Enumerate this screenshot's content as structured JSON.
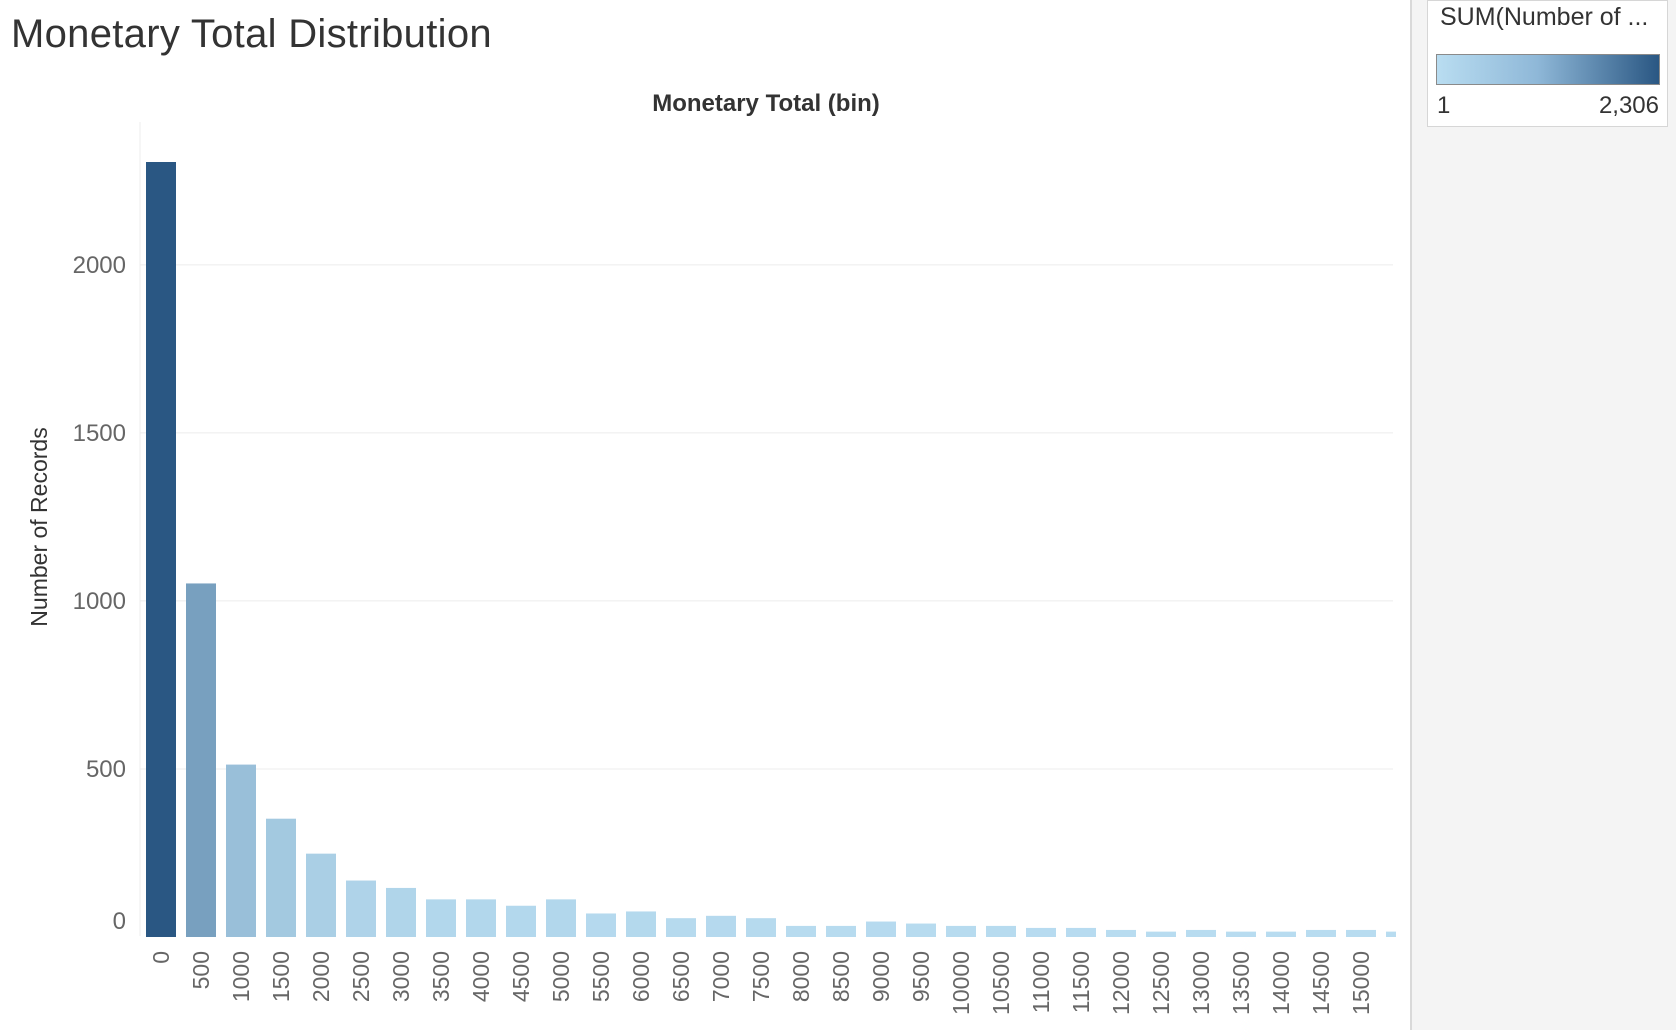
{
  "page": {
    "title": "Monetary Total Distribution"
  },
  "legend": {
    "title": "SUM(Number of ...",
    "min_label": "1",
    "max_label": "2,306",
    "color_low": "#b9ddf1",
    "color_high": "#2a5783"
  },
  "chart_data": {
    "type": "bar",
    "title": "Monetary Total (bin)",
    "xlabel": "",
    "ylabel": "Number of Records",
    "ylim": [
      0,
      2400
    ],
    "y_ticks": [
      {
        "value": 0,
        "label": "0"
      },
      {
        "value": 500,
        "label": "500"
      },
      {
        "value": 1000,
        "label": "1000"
      },
      {
        "value": 1500,
        "label": "1500"
      },
      {
        "value": 2000,
        "label": "2000"
      }
    ],
    "grid": true,
    "categories": [
      "0",
      "500",
      "1000",
      "1500",
      "2000",
      "2500",
      "3000",
      "3500",
      "4000",
      "4500",
      "5000",
      "5500",
      "6000",
      "6500",
      "7000",
      "7500",
      "8000",
      "8500",
      "9000",
      "9500",
      "10000",
      "10500",
      "11000",
      "11500",
      "12000",
      "12500",
      "13000",
      "13500",
      "14000",
      "14500",
      "15000",
      ""
    ],
    "values": [
      2306,
      1052,
      513,
      352,
      248,
      168,
      146,
      112,
      112,
      93,
      112,
      70,
      76,
      56,
      63,
      56,
      33,
      33,
      46,
      40,
      33,
      33,
      27,
      27,
      21,
      16,
      21,
      16,
      16,
      21,
      21,
      16
    ]
  }
}
